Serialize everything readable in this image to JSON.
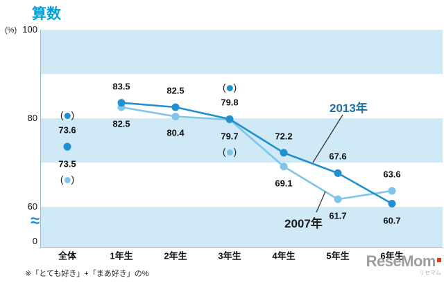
{
  "page": {
    "footnote": "※「とても好き」+「まあ好き」の%",
    "watermark": {
      "text": "ReseMom",
      "sub": "リセマム",
      "accent_color": "#e8380d",
      "text_color": "#9d9d9d"
    }
  },
  "chart_data": {
    "type": "line",
    "title": "算数",
    "title_color": "#00a0dc",
    "categories": [
      "全体",
      "1年生",
      "2年生",
      "3年生",
      "4年生",
      "5年生",
      "6年生"
    ],
    "detached_category_indexes": [
      0
    ],
    "series": [
      {
        "name": "2013年",
        "color": "#2090d0",
        "values": [
          73.6,
          83.5,
          82.5,
          79.8,
          72.2,
          67.6,
          60.7
        ],
        "label_sides": [
          "above",
          "above",
          "above",
          "above",
          "above",
          "above",
          "below"
        ]
      },
      {
        "name": "2007年",
        "color": "#7fc5e9",
        "values": [
          73.5,
          82.5,
          80.4,
          79.7,
          69.1,
          61.7,
          63.6
        ],
        "label_sides": [
          "below",
          "below",
          "below",
          "below",
          "below",
          "below",
          "above"
        ]
      }
    ],
    "paren_markers": [
      {
        "series": 0,
        "category": 0
      },
      {
        "series": 0,
        "category": 3
      },
      {
        "series": 1,
        "category": 0
      },
      {
        "series": 1,
        "category": 3
      }
    ],
    "annotations": [
      {
        "text": "2013年",
        "color": "#1a6fa6"
      },
      {
        "text": "2007年",
        "color": "#1a1a1a"
      }
    ],
    "y_axis": {
      "unit": "(%)",
      "ticks": [
        "100",
        "80",
        "60",
        "0"
      ],
      "break_symbol": "≈",
      "top_value": 100,
      "stripe_band_percent": 10
    },
    "ylim_visible": [
      55,
      100
    ],
    "plot_colors": {
      "band_blue": "#cfe9f7",
      "band_white": "#ffffff"
    }
  }
}
